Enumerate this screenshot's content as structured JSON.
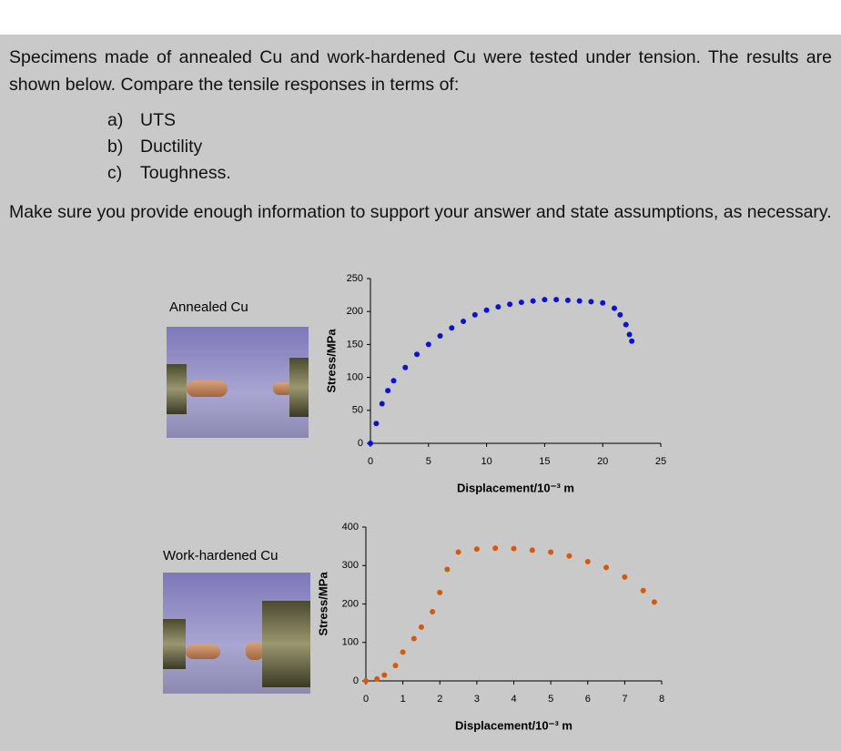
{
  "document": {
    "intro": "Specimens made of annealed Cu and work-hardened Cu were tested under tension. The results are shown below. Compare the tensile responses in terms of:",
    "items": [
      "a)",
      "UTS",
      "b)",
      "Ductility",
      "c)",
      "Toughness."
    ],
    "note": "Make sure you provide enough information to support your answer and state assumptions, as necessary.",
    "captions": [
      "Annealed Cu",
      "Work-hardened Cu"
    ]
  },
  "chart_data": [
    {
      "type": "scatter",
      "xlabel": "Displacement/10⁻³ m",
      "ylabel": "Stress/MPa",
      "xlim": [
        0,
        25
      ],
      "xticks": [
        0,
        5,
        10,
        15,
        20,
        25
      ],
      "ylim": [
        0,
        250
      ],
      "yticks": [
        0,
        50,
        100,
        150,
        200,
        250
      ],
      "grid": false,
      "color": "#0a14d0",
      "x": [
        0,
        0.5,
        1,
        1.5,
        2,
        3,
        4,
        5,
        6,
        7,
        8,
        9,
        10,
        11,
        12,
        13,
        14,
        15,
        16,
        17,
        18,
        19,
        20,
        21,
        21.5,
        22,
        22.3,
        22.5
      ],
      "values": [
        0,
        30,
        60,
        80,
        95,
        115,
        135,
        150,
        163,
        175,
        185,
        195,
        202,
        207,
        211,
        214,
        216,
        218,
        218,
        217,
        216,
        215,
        213,
        205,
        195,
        180,
        165,
        155
      ]
    },
    {
      "type": "scatter",
      "xlabel": "Displacement/10⁻³ m",
      "ylabel": "Stress/MPa",
      "xlim": [
        0,
        8
      ],
      "xticks": [
        0,
        1,
        2,
        3,
        4,
        5,
        6,
        7,
        8
      ],
      "ylim": [
        0,
        400
      ],
      "yticks": [
        0,
        100,
        200,
        300,
        400
      ],
      "grid": false,
      "color": "#d45a0a",
      "x": [
        0,
        0.3,
        0.5,
        0.8,
        1,
        1.3,
        1.5,
        1.8,
        2,
        2.2,
        2.5,
        3,
        3.5,
        4,
        4.5,
        5,
        5.5,
        6,
        6.5,
        7,
        7.5,
        7.8
      ],
      "values": [
        0,
        5,
        15,
        40,
        75,
        110,
        140,
        180,
        230,
        290,
        335,
        343,
        345,
        344,
        340,
        335,
        325,
        310,
        295,
        270,
        235,
        205
      ]
    }
  ]
}
